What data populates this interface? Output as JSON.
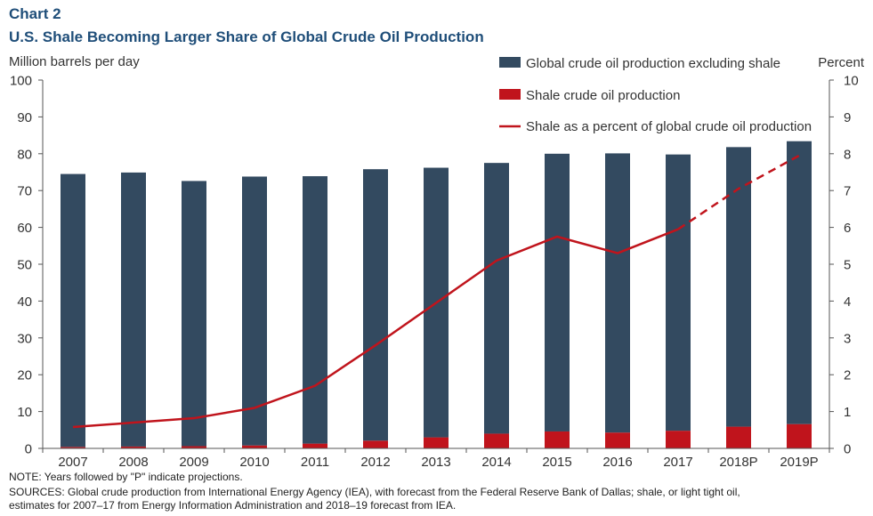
{
  "header": {
    "label": "Chart 2",
    "title": "U.S. Shale Becoming Larger Share of Global Crude Oil Production"
  },
  "chart_data": {
    "type": "bar",
    "stacked": true,
    "categories": [
      "2007",
      "2008",
      "2009",
      "2010",
      "2011",
      "2012",
      "2013",
      "2014",
      "2015",
      "2016",
      "2017",
      "2018P",
      "2019P"
    ],
    "ylabel_left": "Million barrels per day",
    "ylabel_right": "Percent",
    "ylim_left": [
      0,
      100
    ],
    "ylim_right": [
      0,
      10
    ],
    "yticks_left": [
      "0",
      "10",
      "20",
      "30",
      "40",
      "50",
      "60",
      "70",
      "80",
      "90",
      "100"
    ],
    "yticks_right": [
      "0",
      "1",
      "2",
      "3",
      "4",
      "5",
      "6",
      "7",
      "8",
      "9",
      "10"
    ],
    "series": [
      {
        "name": "Shale crude oil production",
        "type": "bar",
        "axis": "left",
        "color": "#c0141c",
        "values": [
          0.4,
          0.5,
          0.6,
          0.8,
          1.3,
          2.1,
          3.0,
          4.0,
          4.6,
          4.3,
          4.8,
          5.9,
          6.6
        ]
      },
      {
        "name": "Global crude oil production excluding shale",
        "type": "bar",
        "axis": "left",
        "color": "#334a60",
        "values": [
          74.1,
          74.4,
          72.0,
          73.0,
          72.6,
          73.7,
          73.2,
          73.5,
          75.4,
          75.8,
          75.0,
          75.9,
          76.8
        ]
      },
      {
        "name": "Shale as a percent of global crude oil production",
        "type": "line",
        "axis": "right",
        "color": "#c0141c",
        "values": [
          0.58,
          0.7,
          0.82,
          1.1,
          1.7,
          2.8,
          3.95,
          5.1,
          5.75,
          5.3,
          5.95,
          7.05,
          7.95
        ],
        "projected_from_index": 10
      }
    ],
    "legend_position": "top-right",
    "grid": false
  },
  "notes": {
    "note": "NOTE: Years followed by \"P\" indicate projections.",
    "sources_line1": "SOURCES: Global crude production from International Energy Agency (IEA), with forecast from the Federal Reserve Bank of Dallas; shale,  or light tight oil,",
    "sources_line2": "estimates for 2007–17 from Energy Information Administration and 2018–19 forecast from IEA."
  }
}
